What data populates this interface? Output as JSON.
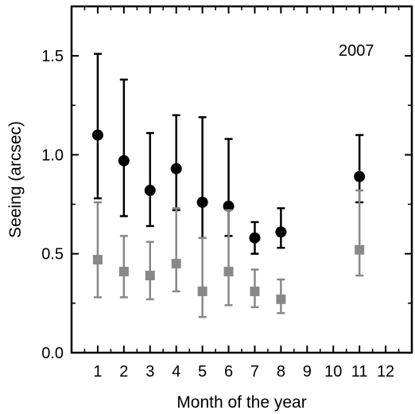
{
  "chart_data": {
    "type": "scatter",
    "title": "",
    "annotation": "2007",
    "xlabel": "Month of the year",
    "ylabel": "Seeing (arcsec)",
    "xlim": [
      0,
      13
    ],
    "ylim": [
      0,
      1.75
    ],
    "xticks": [
      1,
      2,
      3,
      4,
      5,
      6,
      7,
      8,
      9,
      10,
      11,
      12
    ],
    "xtick_labels": [
      "1",
      "2",
      "3",
      "4",
      "5",
      "6",
      "7",
      "8",
      "9",
      "10",
      "11",
      "12"
    ],
    "yticks": [
      0.0,
      0.5,
      1.0,
      1.5
    ],
    "ytick_labels": [
      "0.0",
      "0.5",
      "1.0",
      "1.5"
    ],
    "grid": false,
    "series": [
      {
        "marker": "circle",
        "color": "#000000",
        "points": [
          {
            "x": 1,
            "y": 1.1,
            "low": 0.78,
            "high": 1.51
          },
          {
            "x": 2,
            "y": 0.97,
            "low": 0.69,
            "high": 1.38
          },
          {
            "x": 3,
            "y": 0.82,
            "low": 0.64,
            "high": 1.11
          },
          {
            "x": 4,
            "y": 0.93,
            "low": 0.72,
            "high": 1.2
          },
          {
            "x": 5,
            "y": 0.76,
            "low": 0.58,
            "high": 1.19
          },
          {
            "x": 6,
            "y": 0.74,
            "low": 0.59,
            "high": 1.08
          },
          {
            "x": 7,
            "y": 0.58,
            "low": 0.5,
            "high": 0.66
          },
          {
            "x": 8,
            "y": 0.61,
            "low": 0.53,
            "high": 0.73
          },
          {
            "x": 11,
            "y": 0.89,
            "low": 0.76,
            "high": 1.1
          }
        ]
      },
      {
        "marker": "square",
        "color": "#888888",
        "points": [
          {
            "x": 1,
            "y": 0.47,
            "low": 0.28,
            "high": 0.76
          },
          {
            "x": 2,
            "y": 0.41,
            "low": 0.28,
            "high": 0.59
          },
          {
            "x": 3,
            "y": 0.39,
            "low": 0.27,
            "high": 0.56
          },
          {
            "x": 4,
            "y": 0.45,
            "low": 0.31,
            "high": 0.73
          },
          {
            "x": 5,
            "y": 0.31,
            "low": 0.18,
            "high": 0.58
          },
          {
            "x": 6,
            "y": 0.41,
            "low": 0.24,
            "high": 0.72
          },
          {
            "x": 7,
            "y": 0.31,
            "low": 0.23,
            "high": 0.42
          },
          {
            "x": 8,
            "y": 0.27,
            "low": 0.2,
            "high": 0.37
          },
          {
            "x": 11,
            "y": 0.52,
            "low": 0.39,
            "high": 0.82
          }
        ]
      }
    ]
  }
}
